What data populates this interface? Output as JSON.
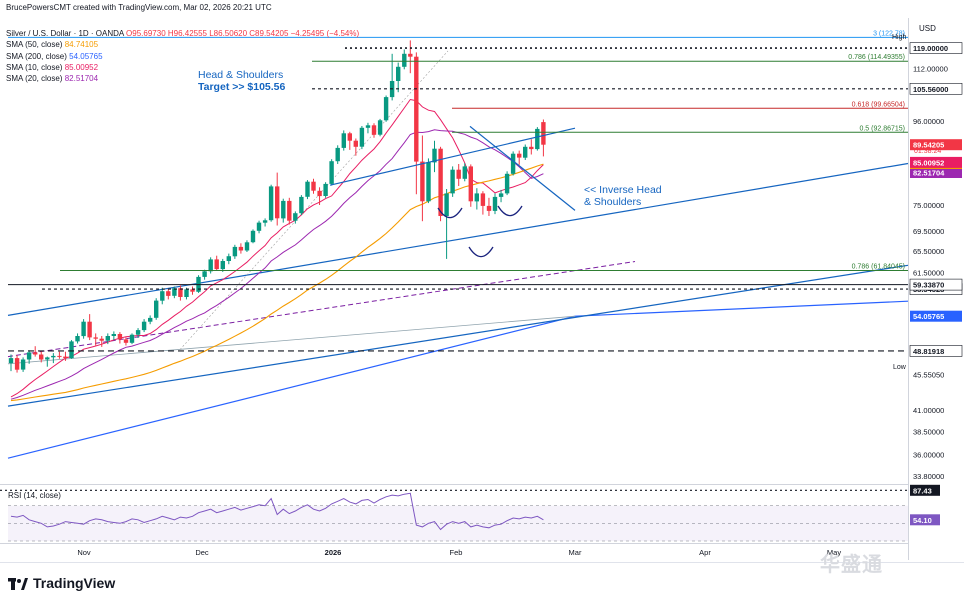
{
  "header": {
    "text": "BrucePowersCMT created with TradingView.com, Mar 02, 2026 20:21 UTC"
  },
  "legend": {
    "symbol": "Silver / U.S. Dollar · 1D · OANDA",
    "ohlc": "O95.69730 H96.42555 L86.50620 C89.54205 −4.25495 (−4.54%)",
    "ohlc_color": "#f23645",
    "smas": [
      {
        "label": "SMA (50, close)",
        "value": "84.74105",
        "color": "#f59c00"
      },
      {
        "label": "SMA (200, close)",
        "value": "54.05765",
        "color": "#2962ff"
      },
      {
        "label": "SMA (10, close)",
        "value": "85.00952",
        "color": "#e91e63"
      },
      {
        "label": "SMA (20, close)",
        "value": "82.51704",
        "color": "#9c27b0"
      }
    ]
  },
  "currency": "USD",
  "logo": "TradingView",
  "watermark": "华盛通",
  "annotations": {
    "hs_line1": "Head & Shoulders",
    "hs_line2": "Target >> $105.56",
    "ihs_line1": "<< Inverse Head",
    "ihs_line2": "& Shoulders",
    "low": "Low",
    "high": "High"
  },
  "colors": {
    "up": "#089981",
    "down": "#f23645",
    "blue": "#2962ff",
    "green": "#2e7d32",
    "orange": "#f59c00",
    "pink": "#e91e63",
    "purple": "#9c27b0",
    "red": "#c62828"
  },
  "chart_data": {
    "type": "candlestick",
    "title": "Silver / U.S. Dollar · 1D · OANDA",
    "y_scale": "log",
    "ylim": [
      33.0,
      130.0
    ],
    "y_ticks": [
      "33.80000",
      "36.00000",
      "38.50000",
      "41.00000",
      "45.55050",
      "48.81918",
      "54.05765",
      "58.54528",
      "59.33870",
      "61.50000",
      "65.50000",
      "69.50000",
      "75.00000",
      "82.51704",
      "84.74105",
      "85.00952",
      "89.54205",
      "96.00000",
      "105.56000",
      "112.00000",
      "119.00000"
    ],
    "x_labels": [
      "Nov",
      "Dec",
      "2026",
      "Feb",
      "Mar",
      "Apr",
      "May"
    ],
    "last_price_label": "89.54205",
    "countdown": "01:38:24",
    "price_lines": [
      {
        "label": "3 (122.78)",
        "value": 122.78,
        "color": "#2196f3"
      },
      {
        "label": "0.786 (114.49355)",
        "value": 114.49355,
        "color": "#2e7d32"
      },
      {
        "label": "0.618 (99.66504)",
        "value": 99.66504,
        "color": "#c62828"
      },
      {
        "label": "0.5 (92.86715)",
        "value": 92.86715,
        "color": "#2e7d32"
      },
      {
        "label": "0.786 (61.84045)",
        "value": 61.84045,
        "color": "#2e7d32"
      }
    ],
    "dotted_levels": [
      119.0,
      105.56,
      58.54528,
      48.81918,
      87.43
    ],
    "candles": [
      {
        "date": "2025-10-27",
        "o": 47.1,
        "h": 48.3,
        "l": 46.0,
        "c": 47.8
      },
      {
        "date": "2025-10-28",
        "o": 47.8,
        "h": 48.2,
        "l": 45.8,
        "c": 46.2
      },
      {
        "date": "2025-10-29",
        "o": 46.2,
        "h": 47.9,
        "l": 45.9,
        "c": 47.6
      },
      {
        "date": "2025-10-30",
        "o": 47.6,
        "h": 48.9,
        "l": 47.0,
        "c": 48.6
      },
      {
        "date": "2025-10-31",
        "o": 48.6,
        "h": 49.5,
        "l": 48.0,
        "c": 48.3
      },
      {
        "date": "2025-11-03",
        "o": 48.3,
        "h": 48.8,
        "l": 47.2,
        "c": 47.6
      },
      {
        "date": "2025-11-04",
        "o": 47.6,
        "h": 48.0,
        "l": 46.6,
        "c": 47.9
      },
      {
        "date": "2025-11-05",
        "o": 47.9,
        "h": 48.5,
        "l": 47.1,
        "c": 48.1
      },
      {
        "date": "2025-11-06",
        "o": 48.1,
        "h": 48.7,
        "l": 47.7,
        "c": 48.0
      },
      {
        "date": "2025-11-07",
        "o": 48.0,
        "h": 48.7,
        "l": 47.4,
        "c": 47.8
      },
      {
        "date": "2025-11-10",
        "o": 47.8,
        "h": 50.4,
        "l": 47.7,
        "c": 50.2
      },
      {
        "date": "2025-11-11",
        "o": 50.2,
        "h": 51.4,
        "l": 49.9,
        "c": 51.0
      },
      {
        "date": "2025-11-12",
        "o": 51.0,
        "h": 53.6,
        "l": 50.6,
        "c": 53.2
      },
      {
        "date": "2025-11-13",
        "o": 53.2,
        "h": 54.4,
        "l": 50.4,
        "c": 50.8
      },
      {
        "date": "2025-11-14",
        "o": 50.8,
        "h": 51.4,
        "l": 49.6,
        "c": 50.6
      },
      {
        "date": "2025-11-17",
        "o": 50.6,
        "h": 51.0,
        "l": 49.4,
        "c": 50.3
      },
      {
        "date": "2025-11-18",
        "o": 50.3,
        "h": 51.4,
        "l": 49.8,
        "c": 51.0
      },
      {
        "date": "2025-11-19",
        "o": 51.0,
        "h": 51.7,
        "l": 50.4,
        "c": 51.3
      },
      {
        "date": "2025-11-20",
        "o": 51.3,
        "h": 51.6,
        "l": 49.9,
        "c": 50.5
      },
      {
        "date": "2025-11-21",
        "o": 50.5,
        "h": 50.8,
        "l": 49.6,
        "c": 50.0
      },
      {
        "date": "2025-11-24",
        "o": 50.0,
        "h": 51.4,
        "l": 49.8,
        "c": 51.2
      },
      {
        "date": "2025-11-25",
        "o": 51.2,
        "h": 52.2,
        "l": 50.7,
        "c": 51.9
      },
      {
        "date": "2025-11-26",
        "o": 51.9,
        "h": 53.6,
        "l": 51.6,
        "c": 53.2
      },
      {
        "date": "2025-11-27",
        "o": 53.2,
        "h": 54.2,
        "l": 52.8,
        "c": 53.8
      },
      {
        "date": "2025-11-28",
        "o": 53.8,
        "h": 57.0,
        "l": 53.5,
        "c": 56.6
      },
      {
        "date": "2025-12-01",
        "o": 56.6,
        "h": 58.8,
        "l": 56.0,
        "c": 58.2
      },
      {
        "date": "2025-12-02",
        "o": 58.2,
        "h": 58.6,
        "l": 56.8,
        "c": 57.4
      },
      {
        "date": "2025-12-03",
        "o": 57.4,
        "h": 59.0,
        "l": 57.0,
        "c": 58.7
      },
      {
        "date": "2025-12-04",
        "o": 58.7,
        "h": 59.2,
        "l": 56.6,
        "c": 57.2
      },
      {
        "date": "2025-12-05",
        "o": 57.2,
        "h": 58.8,
        "l": 56.8,
        "c": 58.5
      },
      {
        "date": "2025-12-08",
        "o": 58.5,
        "h": 59.0,
        "l": 57.6,
        "c": 58.1
      },
      {
        "date": "2025-12-09",
        "o": 58.1,
        "h": 61.0,
        "l": 57.9,
        "c": 60.7
      },
      {
        "date": "2025-12-10",
        "o": 60.7,
        "h": 62.0,
        "l": 60.2,
        "c": 61.7
      },
      {
        "date": "2025-12-11",
        "o": 61.7,
        "h": 64.3,
        "l": 61.3,
        "c": 63.9
      },
      {
        "date": "2025-12-12",
        "o": 63.9,
        "h": 64.6,
        "l": 61.8,
        "c": 62.1
      },
      {
        "date": "2025-12-15",
        "o": 62.1,
        "h": 64.0,
        "l": 61.6,
        "c": 63.6
      },
      {
        "date": "2025-12-16",
        "o": 63.6,
        "h": 65.0,
        "l": 63.0,
        "c": 64.5
      },
      {
        "date": "2025-12-17",
        "o": 64.5,
        "h": 66.7,
        "l": 64.0,
        "c": 66.3
      },
      {
        "date": "2025-12-18",
        "o": 66.3,
        "h": 67.0,
        "l": 65.0,
        "c": 65.6
      },
      {
        "date": "2025-12-19",
        "o": 65.6,
        "h": 67.6,
        "l": 65.3,
        "c": 67.2
      },
      {
        "date": "2025-12-22",
        "o": 67.2,
        "h": 69.8,
        "l": 67.0,
        "c": 69.5
      },
      {
        "date": "2025-12-23",
        "o": 69.5,
        "h": 71.6,
        "l": 69.0,
        "c": 71.2
      },
      {
        "date": "2025-12-24",
        "o": 71.2,
        "h": 72.1,
        "l": 70.4,
        "c": 71.7
      },
      {
        "date": "2025-12-26",
        "o": 71.7,
        "h": 79.6,
        "l": 71.4,
        "c": 79.2
      },
      {
        "date": "2025-12-29",
        "o": 79.2,
        "h": 82.5,
        "l": 70.6,
        "c": 72.1
      },
      {
        "date": "2025-12-30",
        "o": 72.1,
        "h": 76.4,
        "l": 71.2,
        "c": 75.9
      },
      {
        "date": "2025-12-31",
        "o": 75.9,
        "h": 76.6,
        "l": 70.8,
        "c": 71.6
      },
      {
        "date": "2026-01-02",
        "o": 71.6,
        "h": 73.6,
        "l": 71.0,
        "c": 73.2
      },
      {
        "date": "2026-01-05",
        "o": 73.2,
        "h": 77.2,
        "l": 72.8,
        "c": 76.8
      },
      {
        "date": "2026-01-06",
        "o": 76.8,
        "h": 80.7,
        "l": 76.3,
        "c": 80.3
      },
      {
        "date": "2026-01-07",
        "o": 80.3,
        "h": 81.0,
        "l": 77.5,
        "c": 78.2
      },
      {
        "date": "2026-01-08",
        "o": 78.2,
        "h": 79.0,
        "l": 75.0,
        "c": 77.0
      },
      {
        "date": "2026-01-09",
        "o": 77.0,
        "h": 80.2,
        "l": 76.6,
        "c": 79.8
      },
      {
        "date": "2026-01-12",
        "o": 79.8,
        "h": 85.8,
        "l": 79.4,
        "c": 85.3
      },
      {
        "date": "2026-01-13",
        "o": 85.3,
        "h": 89.4,
        "l": 84.6,
        "c": 88.7
      },
      {
        "date": "2026-01-14",
        "o": 88.7,
        "h": 93.4,
        "l": 88.0,
        "c": 92.6
      },
      {
        "date": "2026-01-15",
        "o": 92.6,
        "h": 93.0,
        "l": 88.2,
        "c": 90.6
      },
      {
        "date": "2026-01-16",
        "o": 90.6,
        "h": 91.2,
        "l": 86.7,
        "c": 89.0
      },
      {
        "date": "2026-01-19",
        "o": 89.0,
        "h": 94.6,
        "l": 88.4,
        "c": 94.1
      },
      {
        "date": "2026-01-20",
        "o": 94.1,
        "h": 95.5,
        "l": 92.6,
        "c": 94.8
      },
      {
        "date": "2026-01-21",
        "o": 94.8,
        "h": 95.4,
        "l": 91.4,
        "c": 92.2
      },
      {
        "date": "2026-01-22",
        "o": 92.2,
        "h": 96.6,
        "l": 91.8,
        "c": 96.2
      },
      {
        "date": "2026-01-23",
        "o": 96.2,
        "h": 103.5,
        "l": 95.8,
        "c": 103.0
      },
      {
        "date": "2026-01-26",
        "o": 103.0,
        "h": 117.0,
        "l": 102.0,
        "c": 108.0
      },
      {
        "date": "2026-01-27",
        "o": 108.0,
        "h": 114.0,
        "l": 104.5,
        "c": 112.6
      },
      {
        "date": "2026-01-28",
        "o": 112.6,
        "h": 118.5,
        "l": 111.8,
        "c": 117.0
      },
      {
        "date": "2026-01-29",
        "o": 117.0,
        "h": 121.7,
        "l": 110.5,
        "c": 116.0
      },
      {
        "date": "2026-01-30",
        "o": 116.0,
        "h": 117.5,
        "l": 77.4,
        "c": 85.2
      },
      {
        "date": "2026-02-02",
        "o": 85.2,
        "h": 92.0,
        "l": 71.5,
        "c": 75.8
      },
      {
        "date": "2026-02-03",
        "o": 75.8,
        "h": 86.0,
        "l": 75.4,
        "c": 85.0
      },
      {
        "date": "2026-02-04",
        "o": 85.0,
        "h": 90.6,
        "l": 82.6,
        "c": 88.5
      },
      {
        "date": "2026-02-05",
        "o": 88.5,
        "h": 89.0,
        "l": 71.5,
        "c": 72.6
      },
      {
        "date": "2026-02-06",
        "o": 72.6,
        "h": 78.6,
        "l": 64.0,
        "c": 77.6
      },
      {
        "date": "2026-02-09",
        "o": 77.6,
        "h": 84.0,
        "l": 76.8,
        "c": 83.2
      },
      {
        "date": "2026-02-10",
        "o": 83.2,
        "h": 84.6,
        "l": 79.3,
        "c": 81.0
      },
      {
        "date": "2026-02-11",
        "o": 81.0,
        "h": 84.8,
        "l": 80.4,
        "c": 84.0
      },
      {
        "date": "2026-02-12",
        "o": 84.0,
        "h": 84.5,
        "l": 74.6,
        "c": 75.8
      },
      {
        "date": "2026-02-13",
        "o": 75.8,
        "h": 78.8,
        "l": 74.0,
        "c": 77.6
      },
      {
        "date": "2026-02-16",
        "o": 77.6,
        "h": 78.1,
        "l": 72.9,
        "c": 74.8
      },
      {
        "date": "2026-02-17",
        "o": 74.8,
        "h": 76.6,
        "l": 72.6,
        "c": 73.7
      },
      {
        "date": "2026-02-18",
        "o": 73.7,
        "h": 77.6,
        "l": 73.0,
        "c": 76.8
      },
      {
        "date": "2026-02-19",
        "o": 76.8,
        "h": 78.4,
        "l": 75.6,
        "c": 77.6
      },
      {
        "date": "2026-02-20",
        "o": 77.6,
        "h": 82.8,
        "l": 77.2,
        "c": 82.2
      },
      {
        "date": "2026-02-23",
        "o": 82.2,
        "h": 87.8,
        "l": 81.8,
        "c": 87.2
      },
      {
        "date": "2026-02-24",
        "o": 87.2,
        "h": 88.0,
        "l": 84.4,
        "c": 86.2
      },
      {
        "date": "2026-02-25",
        "o": 86.2,
        "h": 89.6,
        "l": 85.6,
        "c": 89.0
      },
      {
        "date": "2026-02-26",
        "o": 89.0,
        "h": 91.0,
        "l": 87.0,
        "c": 88.4
      },
      {
        "date": "2026-02-27",
        "o": 88.4,
        "h": 94.3,
        "l": 88.0,
        "c": 93.8
      },
      {
        "date": "2026-03-02",
        "o": 95.6973,
        "h": 96.42555,
        "l": 86.5062,
        "c": 89.54205
      }
    ],
    "rsi": {
      "label": "RSI (14, close)",
      "value": "54.10",
      "marker": "87.43",
      "ylim": [
        30,
        90
      ],
      "bands": [
        30,
        70
      ],
      "values": [
        58,
        57,
        59,
        54,
        52,
        50,
        46,
        47,
        49,
        52,
        51,
        50,
        49,
        53,
        55,
        54,
        52,
        51,
        50,
        52,
        55,
        54,
        51,
        53,
        55,
        58,
        56,
        54,
        57,
        56,
        58,
        62,
        64,
        66,
        62,
        64,
        66,
        68,
        65,
        67,
        69,
        71,
        70,
        78,
        60,
        66,
        61,
        64,
        68,
        71,
        66,
        64,
        67,
        72,
        75,
        78,
        74,
        72,
        76,
        77,
        73,
        77,
        80,
        82,
        81,
        83,
        84,
        48,
        46,
        50,
        52,
        43,
        49,
        52,
        50,
        52,
        46,
        48,
        46,
        45,
        48,
        49,
        53,
        56,
        55,
        57,
        56,
        58,
        54
      ]
    }
  }
}
